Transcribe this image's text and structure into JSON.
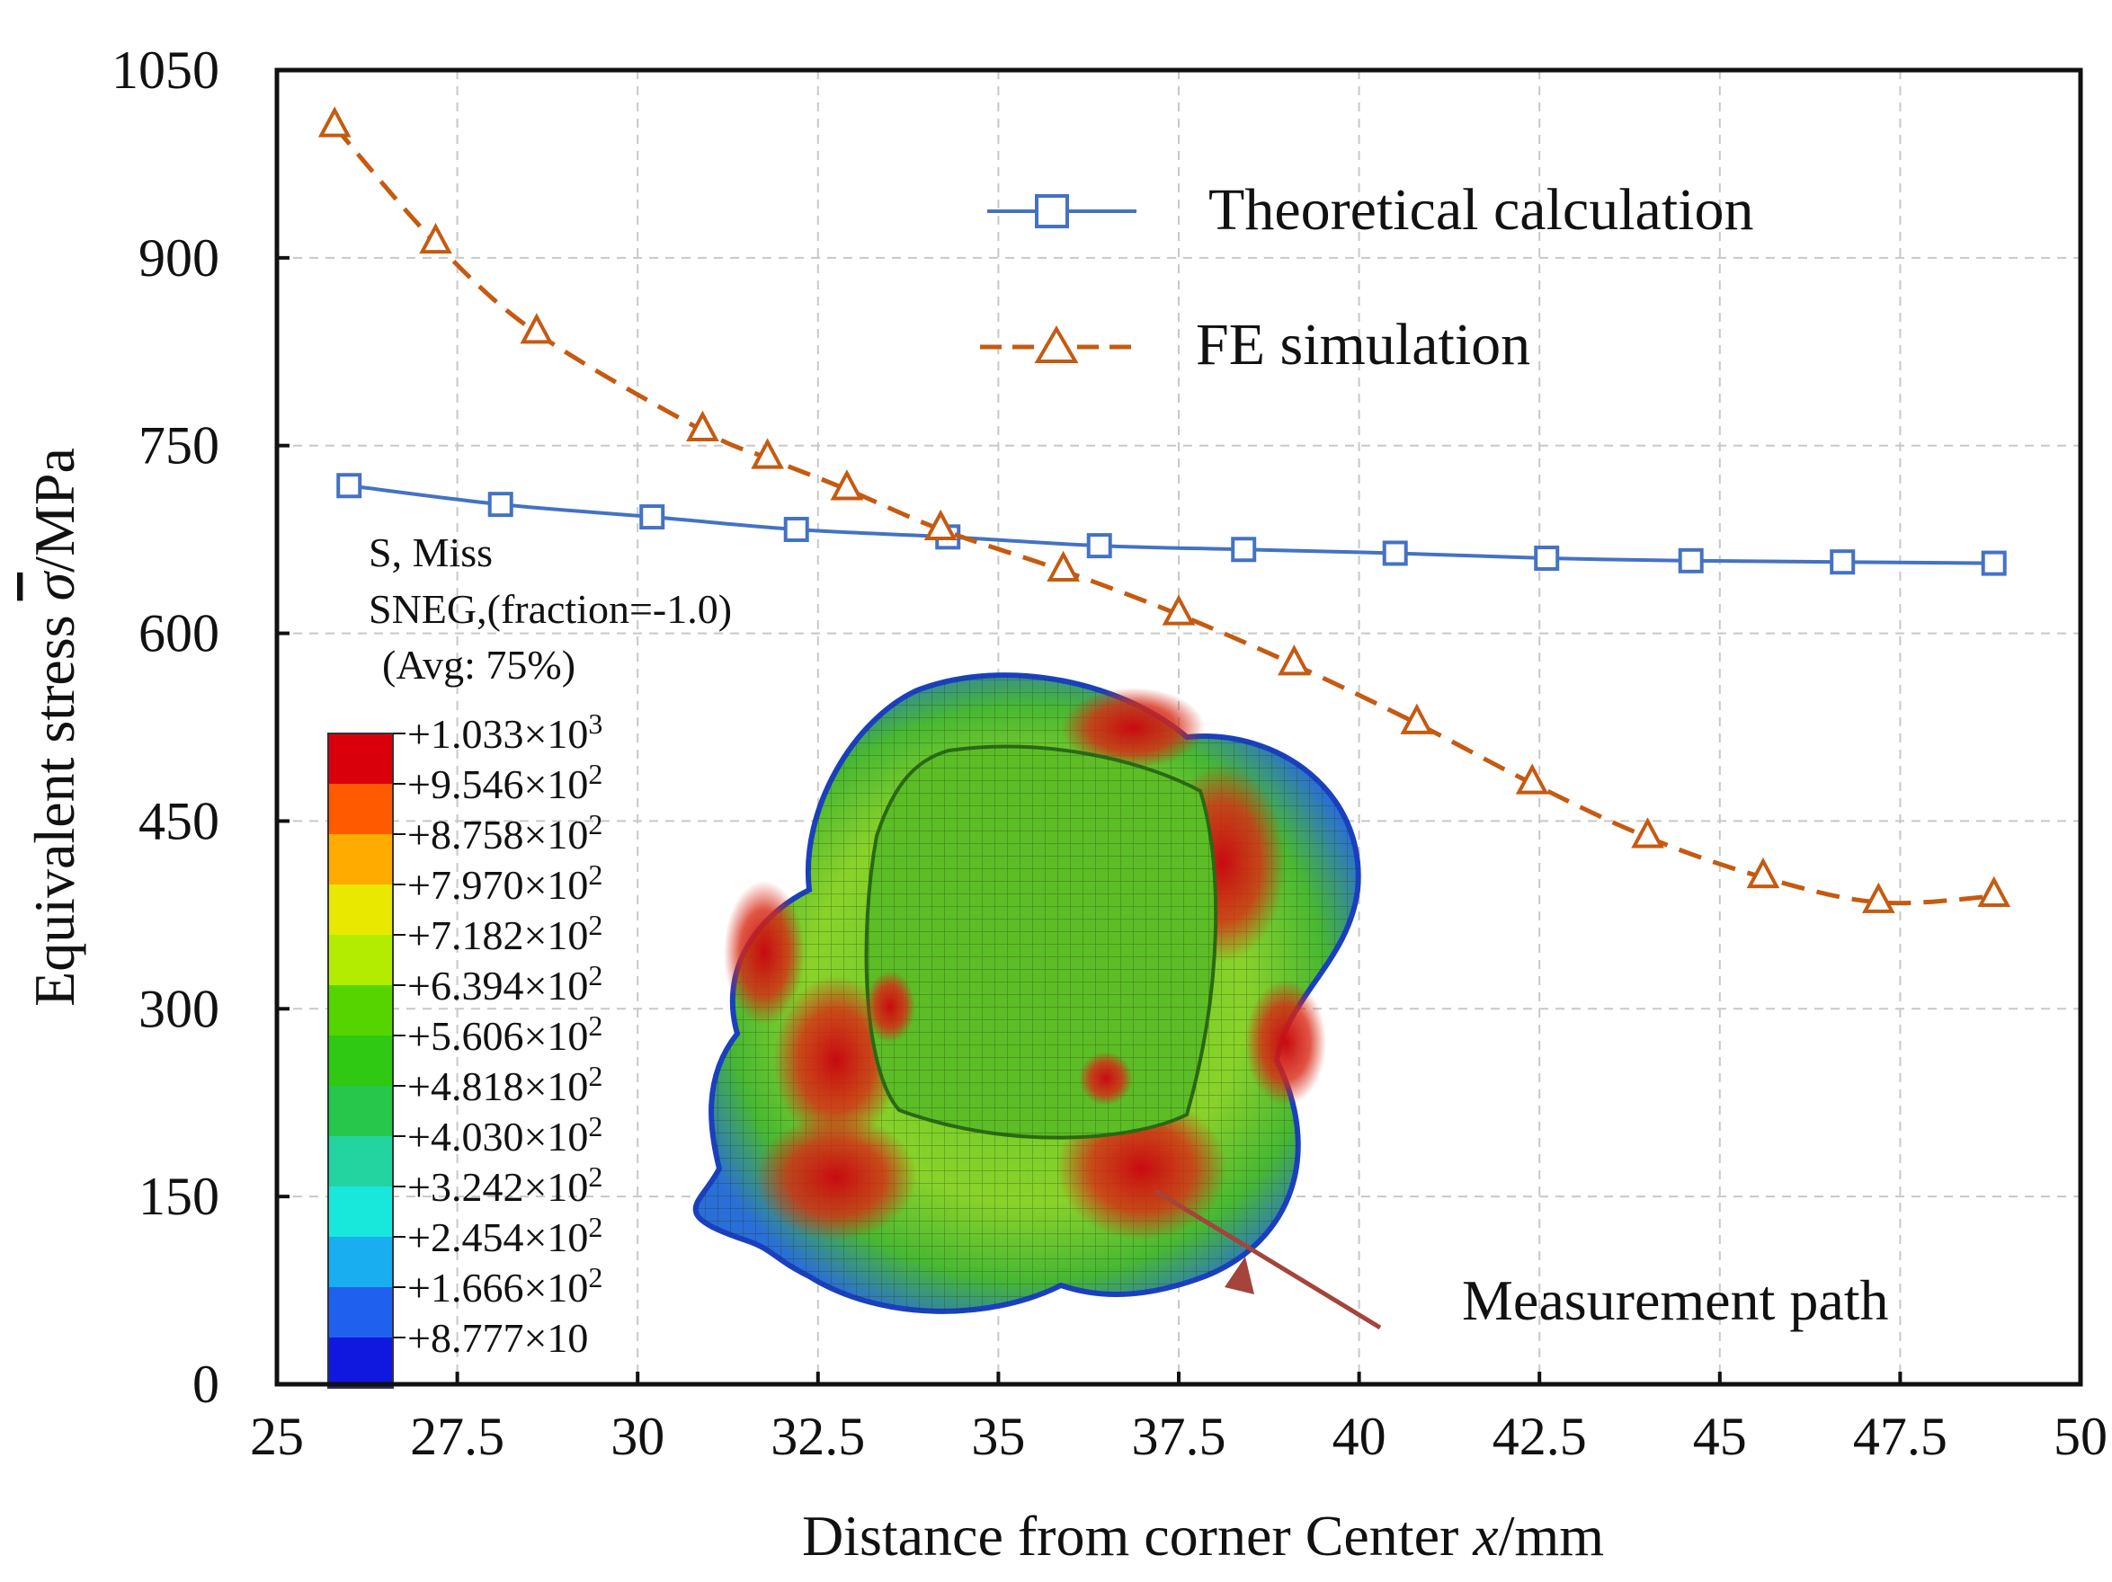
{
  "chart_data": {
    "type": "line",
    "xlabel_prefix": "Distance from corner Center ",
    "xlabel_var": "x",
    "xlabel_suffix": "/mm",
    "ylabel_prefix": "Equivalent stress ",
    "ylabel_symbol": "σ",
    "ylabel_suffix": "/MPa",
    "xlim": [
      25,
      50
    ],
    "ylim": [
      0,
      1050
    ],
    "xticks": [
      25,
      27.5,
      30,
      32.5,
      35,
      37.5,
      40,
      42.5,
      45,
      47.5,
      50
    ],
    "xtick_labels": [
      "25",
      "27.5",
      "30",
      "32.5",
      "35",
      "37.5",
      "40",
      "42.5",
      "45",
      "47.5",
      "50"
    ],
    "yticks": [
      0,
      150,
      300,
      450,
      600,
      750,
      900,
      1050
    ],
    "ytick_labels": [
      "0",
      "150",
      "300",
      "450",
      "600",
      "750",
      "900",
      "1050"
    ],
    "grid": true,
    "legend_position": "top-right",
    "series": [
      {
        "name": "Theoretical calculation",
        "marker": "square",
        "line_style": "solid",
        "color": "#4472c4",
        "x": [
          26.0,
          28.1,
          30.2,
          32.2,
          34.3,
          36.4,
          38.4,
          40.5,
          42.6,
          44.6,
          46.7,
          48.8
        ],
        "y": [
          718,
          703,
          693,
          683,
          677,
          670,
          667,
          664,
          660,
          658,
          657,
          656
        ]
      },
      {
        "name": "FE simulation",
        "marker": "triangle",
        "line_style": "dashed",
        "color": "#c55a11",
        "x": [
          25.8,
          27.2,
          28.6,
          30.9,
          31.8,
          32.9,
          34.2,
          35.9,
          37.5,
          39.1,
          40.8,
          42.4,
          44.0,
          45.6,
          47.2,
          48.8
        ],
        "y": [
          1005,
          912,
          840,
          762,
          740,
          715,
          683,
          650,
          615,
          575,
          528,
          480,
          437,
          405,
          385,
          390
        ]
      }
    ]
  },
  "contour_legend": {
    "header": [
      "S, Miss",
      "SNEG,(fraction=-1.0)",
      "(Avg: 75%)"
    ],
    "levels": [
      {
        "mantissa": "+1.033×10",
        "exp": "3"
      },
      {
        "mantissa": "+9.546×10",
        "exp": "2"
      },
      {
        "mantissa": "+8.758×10",
        "exp": "2"
      },
      {
        "mantissa": "+7.970×10",
        "exp": "2"
      },
      {
        "mantissa": "+7.182×10",
        "exp": "2"
      },
      {
        "mantissa": "+6.394×10",
        "exp": "2"
      },
      {
        "mantissa": "+5.606×10",
        "exp": "2"
      },
      {
        "mantissa": "+4.818×10",
        "exp": "2"
      },
      {
        "mantissa": "+4.030×10",
        "exp": "2"
      },
      {
        "mantissa": "+3.242×10",
        "exp": "2"
      },
      {
        "mantissa": "+2.454×10",
        "exp": "2"
      },
      {
        "mantissa": "+1.666×10",
        "exp": "2"
      },
      {
        "mantissa": "+8.777×10",
        "exp": ""
      }
    ],
    "colors": [
      "#d9000c",
      "#ff5a00",
      "#ffab00",
      "#e8e800",
      "#b4ec00",
      "#56d400",
      "#2fc812",
      "#26c74a",
      "#24d4a0",
      "#18e8dc",
      "#18aef0",
      "#2060ee",
      "#1018e0"
    ]
  },
  "annotation": {
    "text": "Measurement path",
    "color": "#a4443a"
  }
}
